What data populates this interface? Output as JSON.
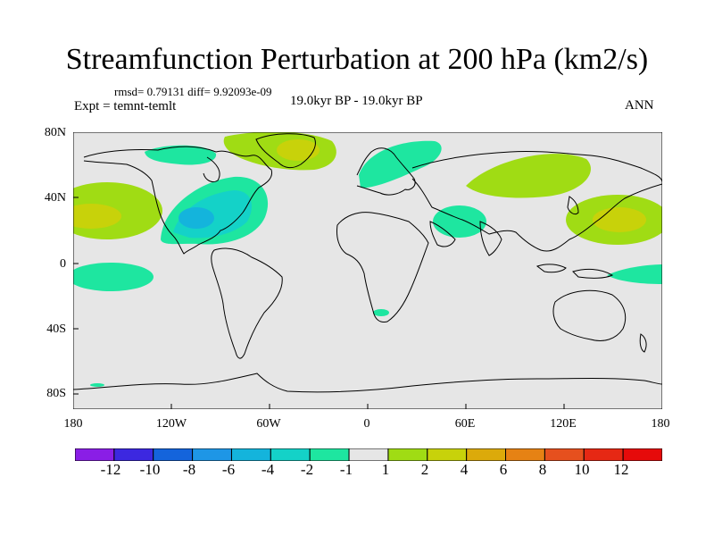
{
  "title": "Streamfunction Perturbation at 200 hPa (km2/s)",
  "stats": "rmsd= 0.79131 diff= 9.92093e-09",
  "experiment": "Expt = temnt-temlt",
  "period": "19.0kyr BP - 19.0kyr BP",
  "season": "ANN",
  "y_axis_labels": [
    "80N",
    "40N",
    "0",
    "40S",
    "80S"
  ],
  "x_axis_labels": [
    "180",
    "120W",
    "60W",
    "0",
    "60E",
    "120E",
    "180"
  ],
  "colorbar": {
    "labels": [
      "-12",
      "-10",
      "-8",
      "-6",
      "-4",
      "-2",
      "-1",
      "1",
      "2",
      "4",
      "6",
      "8",
      "10",
      "12"
    ],
    "colors": [
      "#8a1ee6",
      "#3c28e0",
      "#1464dc",
      "#1e96e6",
      "#14b4dc",
      "#14d2c8",
      "#1ee6a0",
      "#e6e6e6",
      "#a0dc14",
      "#c8d20a",
      "#dcaa0a",
      "#e68214",
      "#e6501e",
      "#e62814",
      "#e60a0a"
    ]
  },
  "chart_data": {
    "type": "heatmap",
    "title": "Streamfunction Perturbation at 200 hPa (km2/s)",
    "projection": "cylindrical equidistant",
    "xlim": [
      -180,
      180
    ],
    "ylim": [
      -90,
      90
    ],
    "xticks": [
      "180",
      "120W",
      "60W",
      "0",
      "60E",
      "120E",
      "180"
    ],
    "yticks": [
      "80N",
      "40N",
      "0",
      "40S",
      "80S"
    ],
    "contour_levels": [
      -12,
      -10,
      -8,
      -6,
      -4,
      -2,
      -1,
      1,
      2,
      4,
      6,
      8,
      10,
      12
    ],
    "background_range": "-1 to 1"
  }
}
